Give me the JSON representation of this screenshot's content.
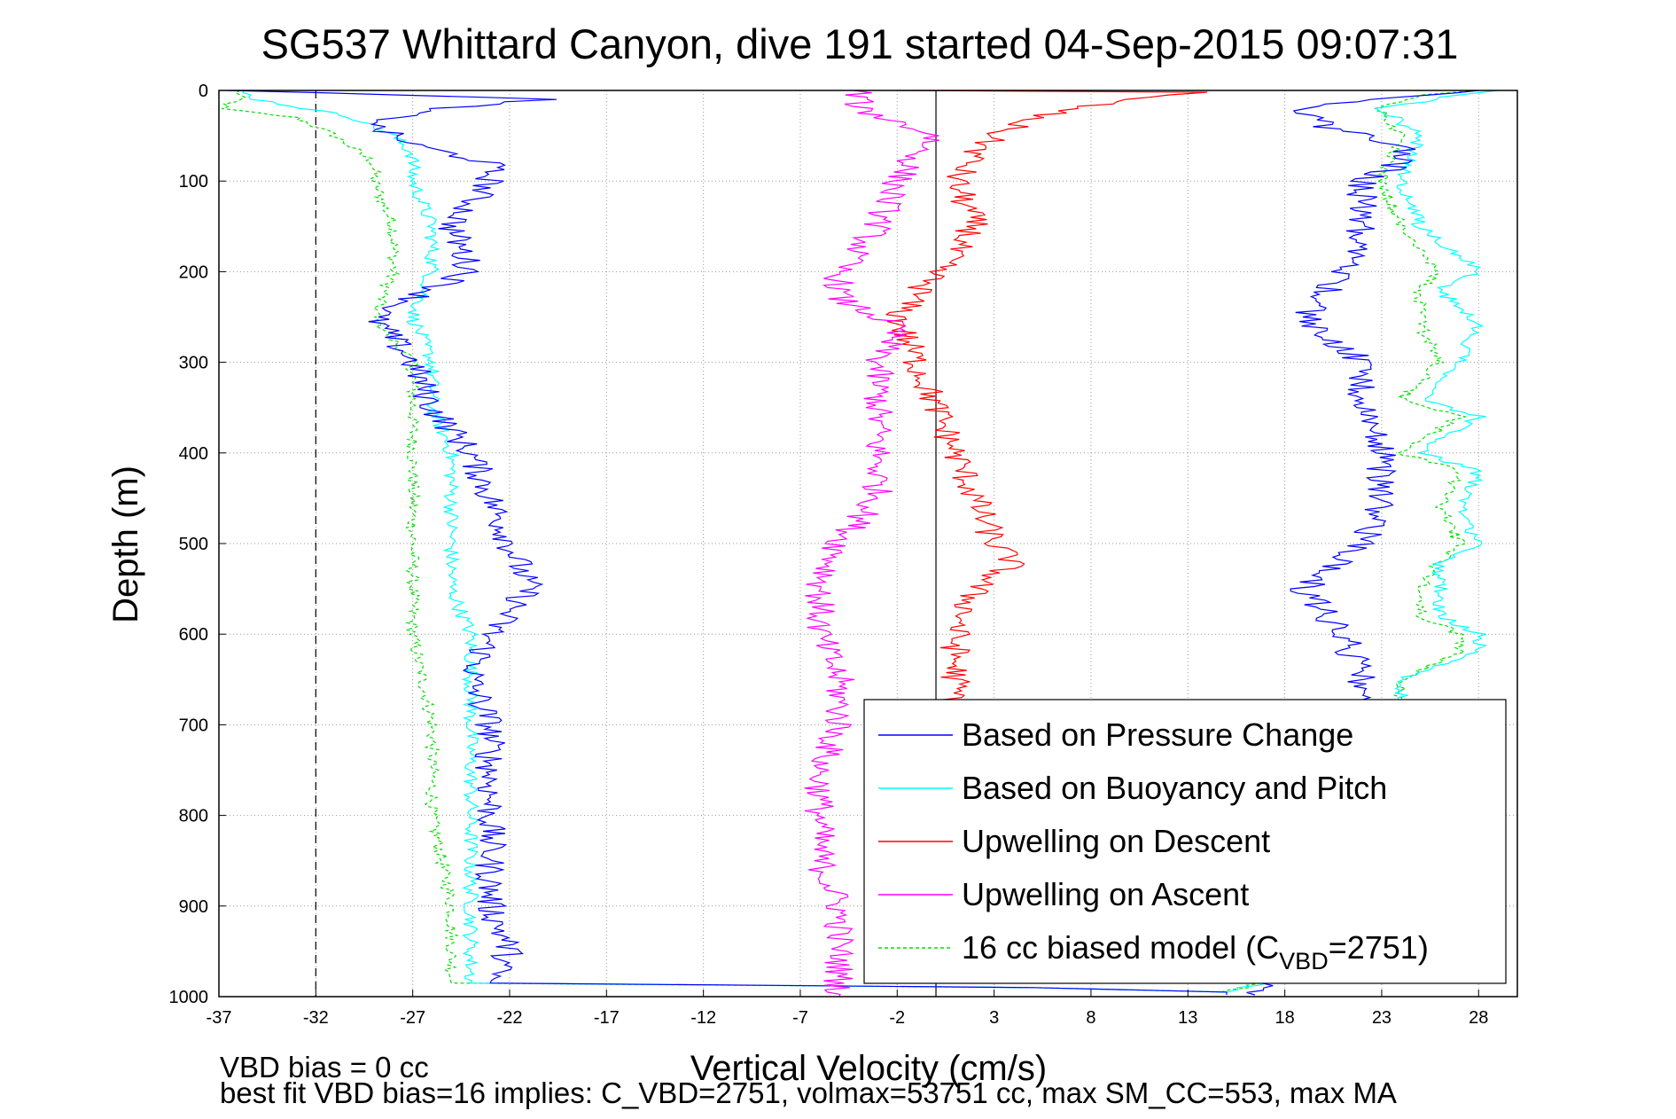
{
  "chart_data": {
    "type": "line",
    "title": "SG537 Whittard Canyon, dive 191 started 04-Sep-2015 09:07:31",
    "xlabel": "Vertical Velocity (cm/s)",
    "ylabel": "Depth (m)",
    "xlim": [
      -37,
      30
    ],
    "ylim": [
      0,
      1000
    ],
    "y_reversed": true,
    "grid": true,
    "x_ticks": [
      "-37",
      "-32",
      "-27",
      "-22",
      "-17",
      "-12",
      "-7",
      "-2",
      "3",
      "8",
      "13",
      "18",
      "23",
      "28"
    ],
    "y_ticks": [
      "0",
      "100",
      "200",
      "300",
      "400",
      "500",
      "600",
      "700",
      "800",
      "900",
      "1000"
    ],
    "reference_lines": [
      {
        "axis": "x",
        "value": -32,
        "style": "dashed"
      },
      {
        "axis": "x",
        "value": 0,
        "style": "solid"
      }
    ],
    "legend": {
      "placement": "bottom-right",
      "entries": [
        {
          "label": "Based on Pressure Change",
          "color": "#0000ff",
          "style": "solid"
        },
        {
          "label": "Based on Buoyancy and Pitch",
          "color": "#00ffff",
          "style": "solid"
        },
        {
          "label": "Upwelling on Descent",
          "color": "#ff0000",
          "style": "solid"
        },
        {
          "label": "Upwelling on Ascent",
          "color": "#ff00ff",
          "style": "solid"
        },
        {
          "label_main": "16 cc biased model (C",
          "label_sub": "VBD",
          "label_end": "=2751)",
          "color": "#00dd00",
          "style": "dashed"
        }
      ]
    },
    "series": [
      {
        "color": "#0000ff",
        "depth": [
          0,
          10,
          20,
          30,
          40,
          60,
          80,
          100,
          150,
          200,
          250,
          300,
          350,
          400,
          450,
          500,
          550,
          600,
          650,
          700,
          750,
          800,
          850,
          900,
          950,
          985,
          990,
          995,
          998
        ],
        "velocity": [
          -36,
          -20,
          -26,
          -28,
          -29,
          -27,
          -23,
          -23,
          -25,
          -24,
          -29,
          -27,
          -26,
          -24,
          -23,
          -22,
          -21,
          -23,
          -24,
          -23,
          -23,
          -23,
          -23,
          -23,
          -22,
          -23,
          5,
          15,
          15
        ],
        "ascent_depth": [
          998,
          950,
          900,
          850,
          800,
          750,
          700,
          650,
          600,
          550,
          500,
          450,
          400,
          350,
          300,
          250,
          200,
          150,
          100,
          80,
          60,
          40,
          20,
          10,
          0
        ],
        "ascent_velocity": [
          16,
          21,
          22,
          22,
          21,
          21,
          21,
          22,
          21,
          19,
          22,
          23,
          23,
          22,
          22,
          19,
          21,
          22,
          22,
          24,
          24,
          20,
          19,
          22,
          28
        ]
      },
      {
        "color": "#00ffff",
        "depth": [
          0,
          10,
          30,
          50,
          70,
          100,
          150,
          200,
          250,
          300,
          350,
          400,
          450,
          500,
          550,
          600,
          650,
          700,
          750,
          800,
          850,
          900,
          950,
          985,
          990,
          995
        ],
        "velocity": [
          -36,
          -35,
          -30,
          -28,
          -27,
          -27,
          -26,
          -26,
          -27,
          -26,
          -26,
          -25,
          -25,
          -25,
          -25,
          -24,
          -24,
          -24,
          -24,
          -24,
          -24,
          -24,
          -24,
          -24,
          5,
          15
        ],
        "ascent_depth": [
          995,
          950,
          900,
          850,
          800,
          750,
          700,
          650,
          620,
          600,
          580,
          550,
          520,
          500,
          460,
          420,
          400,
          360,
          340,
          300,
          260,
          220,
          200,
          150,
          100,
          50,
          20,
          5,
          0
        ],
        "ascent_velocity": [
          15,
          23,
          23,
          23,
          23,
          23,
          24,
          24,
          28,
          28,
          26,
          26,
          26,
          28,
          27,
          28,
          25,
          28,
          25,
          27,
          28,
          26,
          28,
          25,
          24,
          25,
          23,
          27,
          29
        ]
      },
      {
        "color": "#ff0000",
        "depth": [
          0,
          2,
          5,
          10,
          20,
          30,
          50,
          70,
          100,
          150,
          200,
          250,
          300,
          350,
          400,
          450,
          500,
          520,
          550,
          600,
          650,
          700
        ],
        "velocity": [
          -2,
          14,
          12,
          10,
          7,
          5,
          3,
          2,
          1,
          2,
          0,
          -2,
          -1,
          0,
          1,
          2,
          3,
          4,
          2,
          1,
          1,
          1
        ]
      },
      {
        "color": "#ff00ff",
        "depth": [
          0,
          20,
          50,
          70,
          100,
          150,
          200,
          230,
          260,
          300,
          350,
          400,
          450,
          500,
          550,
          600,
          650,
          700,
          750,
          800,
          850,
          900,
          950,
          1000
        ],
        "velocity": [
          -4,
          -4,
          0,
          -1,
          -2,
          -3,
          -5,
          -5,
          -2,
          -3,
          -3,
          -3,
          -3,
          -5,
          -6,
          -6,
          -5,
          -5,
          -6,
          -6,
          -6,
          -5,
          -5,
          -5
        ]
      },
      {
        "color": "#00dd00",
        "style": "dashed",
        "depth": [
          0,
          10,
          20,
          30,
          50,
          80,
          100,
          150,
          200,
          250,
          300,
          400,
          500,
          600,
          700,
          800,
          900,
          950,
          985,
          990,
          995
        ],
        "velocity": [
          -36,
          -36,
          -37,
          -33,
          -31,
          -29,
          -29,
          -28,
          -28,
          -29,
          -27,
          -27,
          -27,
          -27,
          -26,
          -26,
          -25,
          -25,
          -25,
          5,
          15
        ],
        "ascent_depth": [
          995,
          950,
          900,
          850,
          800,
          750,
          700,
          650,
          620,
          600,
          580,
          550,
          520,
          500,
          460,
          420,
          400,
          360,
          340,
          300,
          260,
          220,
          200,
          150,
          100,
          50,
          20,
          5,
          0
        ],
        "ascent_velocity": [
          15,
          23,
          23,
          23,
          23,
          23,
          24,
          24,
          27,
          27,
          25,
          25,
          26,
          27,
          26,
          27,
          24,
          27,
          24,
          26,
          25,
          25,
          26,
          24,
          23,
          24,
          23,
          25,
          28
        ]
      }
    ],
    "annotations": [
      "VBD bias = 0 cc",
      "best fit VBD bias=16 implies: C_VBD=2751, volmax=53751 cc, max SM_CC=553, max MA"
    ]
  }
}
